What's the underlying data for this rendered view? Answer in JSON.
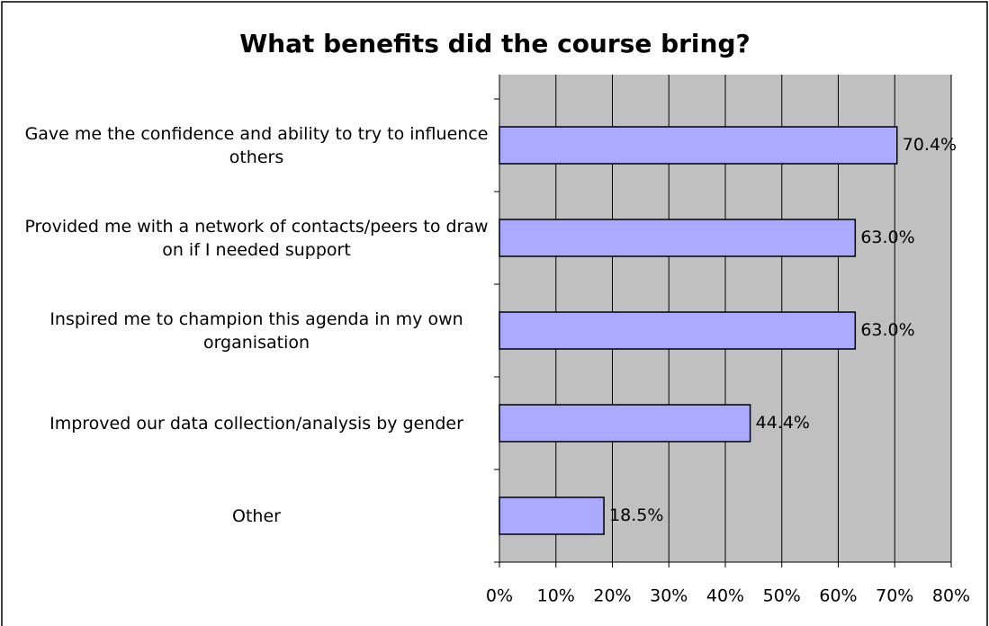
{
  "chart_data": {
    "type": "bar",
    "orientation": "horizontal",
    "title": "What benefits did the course bring?",
    "categories": [
      "Gave me the confidence and ability to try to influence others",
      "Provided me with a network of contacts/peers to draw on if I needed support",
      "Inspired me to champion this agenda in my own organisation",
      "Improved our data collection/analysis by gender",
      "Other"
    ],
    "values": [
      70.4,
      63.0,
      63.0,
      44.4,
      18.5
    ],
    "value_labels": [
      "70.4%",
      "63.0%",
      "63.0%",
      "44.4%",
      "18.5%"
    ],
    "color": "#aaaaff",
    "xlim": [
      0,
      80
    ],
    "xticks": [
      {
        "value": 0,
        "label": "0%"
      },
      {
        "value": 10,
        "label": "10%"
      },
      {
        "value": 20,
        "label": "20%"
      },
      {
        "value": 30,
        "label": "30%"
      },
      {
        "value": 40,
        "label": "40%"
      },
      {
        "value": 50,
        "label": "50%"
      },
      {
        "value": 60,
        "label": "60%"
      },
      {
        "value": 70,
        "label": "70%"
      },
      {
        "value": 80,
        "label": "80%"
      }
    ],
    "grid": true
  }
}
